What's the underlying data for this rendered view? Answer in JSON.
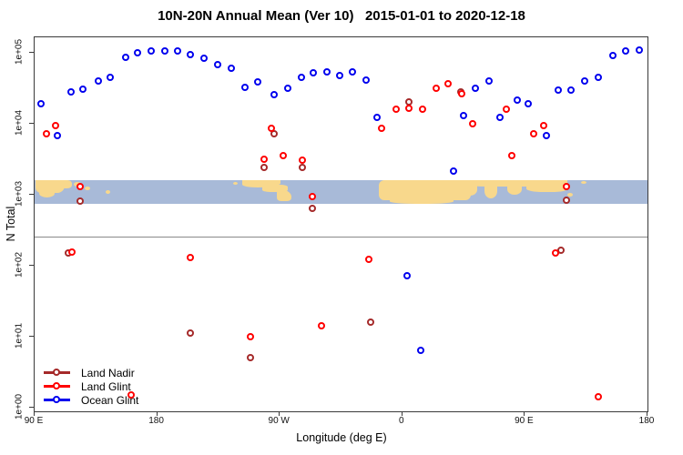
{
  "chart_data": {
    "type": "scatter",
    "title": "10N-20N Annual Mean (Ver 10)   2015-01-01 to 2020-12-18",
    "xlabel": "Longitude (deg E)",
    "ylabel": "N Total",
    "x_axis": {
      "min": 90,
      "max": 540,
      "ticks": [
        {
          "value": 90,
          "label": "90 E"
        },
        {
          "value": 180,
          "label": "180"
        },
        {
          "value": 270,
          "label": "90 W"
        },
        {
          "value": 360,
          "label": "0"
        },
        {
          "value": 450,
          "label": "90 E"
        },
        {
          "value": 540,
          "label": "180"
        }
      ]
    },
    "y_axis": {
      "scale": "log",
      "min": 1,
      "max": 100000,
      "ticks": [
        {
          "value": 1,
          "label": "1e+00"
        },
        {
          "value": 10,
          "label": "1e+01"
        },
        {
          "value": 100,
          "label": "1e+02"
        },
        {
          "value": 1000,
          "label": "1e+03"
        },
        {
          "value": 10000,
          "label": "1e+04"
        },
        {
          "value": 100000,
          "label": "1e+05"
        }
      ]
    },
    "grid": "off",
    "legend_position": "bottom-left",
    "threshold_line_value": 260,
    "map_band": {
      "value_top": 1600,
      "value_bottom": 740,
      "ocean_color": "#A8BAD8",
      "land_color": "#F8D88C"
    },
    "series": [
      {
        "id": "land-nadir",
        "name": "Land Nadir",
        "color": "#A52A2A",
        "points": [
          [
            115,
            150
          ],
          [
            124,
            800
          ],
          [
            205,
            11
          ],
          [
            249,
            5
          ],
          [
            259,
            2400
          ],
          [
            266,
            7200
          ],
          [
            287,
            2400
          ],
          [
            294,
            640
          ],
          [
            337,
            16
          ],
          [
            365,
            20000
          ],
          [
            403,
            28000
          ],
          [
            477,
            165
          ],
          [
            481,
            830
          ]
        ]
      },
      {
        "id": "land-glint",
        "name": "Land Glint",
        "color": "#FF0000",
        "points": [
          [
            99,
            7200
          ],
          [
            106,
            9400
          ],
          [
            118,
            155
          ],
          [
            124,
            1300
          ],
          [
            161,
            1.5
          ],
          [
            205,
            130
          ],
          [
            249,
            10
          ],
          [
            259,
            3100
          ],
          [
            264,
            8600
          ],
          [
            273,
            3500
          ],
          [
            287,
            3000
          ],
          [
            294,
            920
          ],
          [
            301,
            14
          ],
          [
            336,
            120
          ],
          [
            345,
            8600
          ],
          [
            356,
            16000
          ],
          [
            365,
            16500
          ],
          [
            375,
            16000
          ],
          [
            385,
            31000
          ],
          [
            394,
            36000
          ],
          [
            404,
            26000
          ],
          [
            412,
            10000
          ],
          [
            437,
            16000
          ],
          [
            441,
            3500
          ],
          [
            457,
            7200
          ],
          [
            464,
            9400
          ],
          [
            473,
            150
          ],
          [
            481,
            1300
          ],
          [
            504,
            1.4
          ]
        ]
      },
      {
        "id": "ocean-glint",
        "name": "Ocean Glint",
        "color": "#0000EE",
        "points": [
          [
            95,
            19000
          ],
          [
            107,
            6800
          ],
          [
            117,
            28000
          ],
          [
            126,
            30000
          ],
          [
            137,
            39000
          ],
          [
            146,
            44000
          ],
          [
            157,
            86000
          ],
          [
            166,
            100000
          ],
          [
            176,
            103000
          ],
          [
            186,
            105000
          ],
          [
            195,
            105000
          ],
          [
            205,
            92000
          ],
          [
            215,
            83000
          ],
          [
            225,
            68000
          ],
          [
            235,
            60000
          ],
          [
            245,
            32000
          ],
          [
            254,
            38000
          ],
          [
            266,
            25000
          ],
          [
            276,
            31000
          ],
          [
            286,
            44000
          ],
          [
            295,
            52000
          ],
          [
            305,
            53000
          ],
          [
            314,
            47000
          ],
          [
            324,
            53000
          ],
          [
            334,
            41000
          ],
          [
            342,
            12000
          ],
          [
            364,
            72
          ],
          [
            374,
            6.4
          ],
          [
            398,
            2100
          ],
          [
            405,
            13000
          ],
          [
            414,
            31000
          ],
          [
            424,
            40000
          ],
          [
            432,
            12000
          ],
          [
            445,
            21000
          ],
          [
            453,
            19000
          ],
          [
            466,
            6800
          ],
          [
            475,
            29000
          ],
          [
            484,
            29000
          ],
          [
            494,
            40000
          ],
          [
            504,
            45000
          ],
          [
            515,
            89000
          ],
          [
            524,
            105000
          ],
          [
            534,
            107000
          ]
        ]
      }
    ]
  }
}
